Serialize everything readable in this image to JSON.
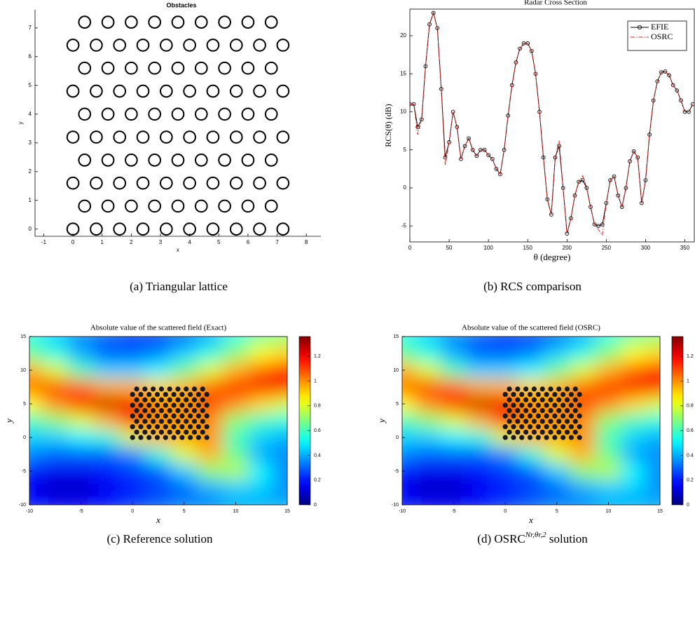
{
  "chart_data": [
    {
      "type": "scatter",
      "title": "Obstacles",
      "x_label": "x",
      "y_label": "y",
      "caption": "(a) Triangular lattice",
      "x": [
        0,
        0.8,
        1.6,
        2.4,
        3.2,
        4,
        4.8,
        5.6,
        6.4,
        7.2,
        0.4,
        1.2,
        2,
        2.8,
        3.6,
        4.4,
        5.2,
        6,
        6.8,
        0,
        0.8,
        1.6,
        2.4,
        3.2,
        4,
        4.8,
        5.6,
        6.4,
        7.2,
        0.4,
        1.2,
        2,
        2.8,
        3.6,
        4.4,
        5.2,
        6,
        6.8,
        0,
        0.8,
        1.6,
        2.4,
        3.2,
        4,
        4.8,
        5.6,
        6.4,
        7.2,
        0.4,
        1.2,
        2,
        2.8,
        3.6,
        4.4,
        5.2,
        6,
        6.8,
        0,
        0.8,
        1.6,
        2.4,
        3.2,
        4,
        4.8,
        5.6,
        6.4,
        7.2,
        0.4,
        1.2,
        2,
        2.8,
        3.6,
        4.4,
        5.2,
        6,
        6.8,
        0,
        0.8,
        1.6,
        2.4,
        3.2,
        4,
        4.8,
        5.6,
        6.4,
        7.2,
        0.4,
        1.2,
        2,
        2.8,
        3.6,
        4.4,
        5.2,
        6,
        6.8
      ],
      "y": [
        0,
        0,
        0,
        0,
        0,
        0,
        0,
        0,
        0,
        0,
        0.8,
        0.8,
        0.8,
        0.8,
        0.8,
        0.8,
        0.8,
        0.8,
        0.8,
        1.6,
        1.6,
        1.6,
        1.6,
        1.6,
        1.6,
        1.6,
        1.6,
        1.6,
        1.6,
        2.4,
        2.4,
        2.4,
        2.4,
        2.4,
        2.4,
        2.4,
        2.4,
        2.4,
        3.2,
        3.2,
        3.2,
        3.2,
        3.2,
        3.2,
        3.2,
        3.2,
        3.2,
        3.2,
        4,
        4,
        4,
        4,
        4,
        4,
        4,
        4,
        4,
        4.8,
        4.8,
        4.8,
        4.8,
        4.8,
        4.8,
        4.8,
        4.8,
        4.8,
        4.8,
        5.6,
        5.6,
        5.6,
        5.6,
        5.6,
        5.6,
        5.6,
        5.6,
        5.6,
        6.4,
        6.4,
        6.4,
        6.4,
        6.4,
        6.4,
        6.4,
        6.4,
        6.4,
        6.4,
        7.2,
        7.2,
        7.2,
        7.2,
        7.2,
        7.2,
        7.2,
        7.2,
        7.2
      ],
      "color": "#000000",
      "xlim": [
        -1.3,
        8.5
      ],
      "xticks": [
        -1,
        0,
        1,
        2,
        3,
        4,
        5,
        6,
        7,
        8
      ],
      "ylim": [
        -0.25,
        7.63
      ],
      "yticks": [
        0,
        1,
        2,
        3,
        4,
        5,
        6,
        7
      ]
    },
    {
      "type": "line",
      "title": "Radar Cross Section",
      "x_label": "θ (degree)",
      "y_label": "RCS(θ)  (dB)",
      "caption": "(b) RCS comparison",
      "x": [
        0,
        5,
        10,
        15,
        20,
        25,
        30,
        35,
        40,
        45,
        50,
        55,
        60,
        65,
        70,
        75,
        80,
        85,
        90,
        95,
        100,
        105,
        110,
        115,
        120,
        125,
        130,
        135,
        140,
        145,
        150,
        155,
        160,
        165,
        170,
        175,
        180,
        185,
        190,
        195,
        200,
        205,
        210,
        215,
        220,
        225,
        230,
        235,
        240,
        245,
        250,
        255,
        260,
        265,
        270,
        275,
        280,
        285,
        290,
        295,
        300,
        305,
        310,
        315,
        320,
        325,
        330,
        335,
        340,
        345,
        350,
        355,
        360
      ],
      "series": [
        {
          "name": "EFIE",
          "color": "#000000",
          "linestyle": "solid",
          "marker": "circle",
          "values": [
            11,
            11,
            8,
            9,
            16,
            21.5,
            23,
            21,
            13,
            4,
            6,
            10,
            8,
            3.8,
            5.5,
            6.5,
            5,
            4.2,
            5,
            5,
            4.3,
            3.8,
            2.5,
            1.8,
            5,
            9.5,
            13.5,
            16.5,
            18.3,
            19,
            19,
            18,
            15,
            10,
            4,
            -1.5,
            -3.5,
            4,
            5.5,
            0,
            -6,
            -4,
            -1,
            0.8,
            1,
            0,
            -2.5,
            -4.8,
            -5,
            -4.8,
            -2,
            1,
            1.5,
            -1,
            -2.5,
            0,
            3.5,
            4.8,
            4,
            -2,
            1,
            7,
            11.5,
            14,
            15.2,
            15.3,
            14.8,
            13.5,
            12.8,
            11.5,
            10,
            10,
            11
          ]
        },
        {
          "name": "OSRC",
          "color": "#e0201c",
          "linestyle": "dashdot",
          "marker": "none",
          "values": [
            11,
            11,
            7,
            9,
            16,
            21.5,
            23,
            21,
            13,
            3,
            6,
            10,
            8,
            3.8,
            5.5,
            6.5,
            5,
            4.2,
            5,
            5,
            4.3,
            3.8,
            2.5,
            1.8,
            5,
            9.5,
            13.5,
            16.5,
            18.3,
            19,
            19,
            18,
            15,
            10,
            4,
            -1.5,
            -3.5,
            4,
            6.2,
            0,
            -6,
            -4,
            -1,
            0.8,
            1.6,
            0,
            -2.5,
            -4.8,
            -5.5,
            -6.2,
            -2,
            1,
            1.5,
            -1,
            -2.5,
            0,
            3.5,
            4.8,
            4,
            -2,
            1,
            7,
            11.5,
            14,
            15.2,
            15.3,
            14.8,
            13.5,
            12.8,
            11.5,
            10,
            10,
            11
          ]
        }
      ],
      "legend": "northeast",
      "xlim": [
        0,
        362
      ],
      "xticks": [
        0,
        50,
        100,
        150,
        200,
        250,
        300,
        350
      ],
      "ylim": [
        -7.1,
        23.5
      ],
      "yticks": [
        -5,
        0,
        5,
        10,
        15,
        20
      ]
    },
    {
      "type": "heatmap",
      "title": "Absolute value of the scattered field (Exact)",
      "x_label": "x",
      "y_label": "y",
      "caption": "(c) Reference solution",
      "x": [
        -10,
        -7.5,
        -5,
        -2.5,
        0,
        2.5,
        5,
        7.5,
        10,
        12.5,
        15
      ],
      "y": [
        15,
        12.5,
        10,
        7.5,
        5,
        2.5,
        0,
        -2.5,
        -5,
        -7.5,
        -10
      ],
      "values": [
        [
          0.55,
          0.45,
          0.35,
          0.3,
          0.25,
          0.25,
          0.3,
          0.4,
          0.55,
          0.65,
          0.7
        ],
        [
          0.65,
          0.55,
          0.4,
          0.3,
          0.3,
          0.35,
          0.45,
          0.55,
          0.7,
          0.85,
          0.9
        ],
        [
          0.95,
          0.8,
          0.6,
          0.45,
          0.45,
          0.5,
          0.65,
          0.8,
          0.95,
          1.05,
          1.15
        ],
        [
          1.05,
          1.1,
          1.05,
          0.95,
          0.95,
          0.9,
          0.95,
          1.05,
          1.15,
          1.2,
          1.15
        ],
        [
          0.85,
          1.0,
          1.15,
          1.25,
          1.2,
          1.0,
          1.0,
          1.1,
          1.0,
          0.9,
          0.8
        ],
        [
          0.6,
          0.7,
          0.8,
          0.95,
          1.1,
          1.0,
          1.0,
          1.0,
          0.7,
          0.6,
          0.55
        ],
        [
          0.45,
          0.45,
          0.5,
          0.55,
          0.8,
          0.95,
          0.95,
          1.0,
          0.6,
          0.45,
          0.4
        ],
        [
          0.35,
          0.3,
          0.3,
          0.3,
          0.35,
          0.55,
          0.8,
          0.95,
          0.65,
          0.4,
          0.35
        ],
        [
          0.2,
          0.15,
          0.15,
          0.2,
          0.25,
          0.3,
          0.45,
          0.7,
          0.75,
          0.5,
          0.35
        ],
        [
          0.15,
          0.1,
          0.1,
          0.15,
          0.2,
          0.25,
          0.3,
          0.4,
          0.45,
          0.45,
          0.35
        ],
        [
          0.2,
          0.15,
          0.15,
          0.2,
          0.25,
          0.3,
          0.35,
          0.35,
          0.4,
          0.4,
          0.4
        ]
      ],
      "colormap": "jet",
      "clim": [
        0,
        1.36
      ],
      "colorbar_ticks": [
        0,
        0.2,
        0.4,
        0.6,
        0.8,
        1,
        1.2
      ],
      "xlim": [
        -10,
        15
      ],
      "xticks": [
        -10,
        -5,
        0,
        5,
        10,
        15
      ],
      "ylim": [
        -10,
        15
      ],
      "yticks": [
        -10,
        -5,
        0,
        5,
        10,
        15
      ]
    },
    {
      "type": "heatmap",
      "title": "Absolute value of the scattered field (OSRC)",
      "x_label": "x",
      "y_label": "y",
      "caption": "(d) OSRC",
      "caption_superscript": "Nr,θr,2",
      "caption_suffix": " solution",
      "x": [
        -10,
        -7.5,
        -5,
        -2.5,
        0,
        2.5,
        5,
        7.5,
        10,
        12.5,
        15
      ],
      "y": [
        15,
        12.5,
        10,
        7.5,
        5,
        2.5,
        0,
        -2.5,
        -5,
        -7.5,
        -10
      ],
      "values": [
        [
          0.55,
          0.45,
          0.35,
          0.3,
          0.25,
          0.25,
          0.3,
          0.4,
          0.55,
          0.65,
          0.7
        ],
        [
          0.65,
          0.55,
          0.4,
          0.3,
          0.3,
          0.35,
          0.45,
          0.55,
          0.7,
          0.85,
          0.9
        ],
        [
          0.95,
          0.8,
          0.6,
          0.45,
          0.45,
          0.5,
          0.65,
          0.8,
          0.95,
          1.05,
          1.15
        ],
        [
          1.05,
          1.1,
          1.05,
          0.95,
          0.95,
          0.9,
          0.95,
          1.05,
          1.15,
          1.2,
          1.15
        ],
        [
          0.85,
          1.0,
          1.15,
          1.25,
          1.2,
          1.0,
          1.0,
          1.1,
          1.0,
          0.9,
          0.8
        ],
        [
          0.6,
          0.7,
          0.8,
          0.95,
          1.1,
          1.0,
          1.0,
          1.0,
          0.7,
          0.6,
          0.55
        ],
        [
          0.45,
          0.45,
          0.5,
          0.55,
          0.8,
          0.95,
          0.95,
          1.0,
          0.6,
          0.45,
          0.4
        ],
        [
          0.35,
          0.3,
          0.3,
          0.3,
          0.35,
          0.55,
          0.8,
          0.95,
          0.65,
          0.4,
          0.35
        ],
        [
          0.2,
          0.15,
          0.15,
          0.2,
          0.25,
          0.3,
          0.45,
          0.7,
          0.75,
          0.5,
          0.35
        ],
        [
          0.15,
          0.1,
          0.1,
          0.15,
          0.2,
          0.25,
          0.3,
          0.4,
          0.45,
          0.45,
          0.35
        ],
        [
          0.2,
          0.15,
          0.15,
          0.2,
          0.25,
          0.3,
          0.35,
          0.35,
          0.4,
          0.4,
          0.4
        ]
      ],
      "colormap": "jet",
      "clim": [
        0,
        1.36
      ],
      "colorbar_ticks": [
        0,
        0.2,
        0.4,
        0.6,
        0.8,
        1,
        1.2
      ],
      "xlim": [
        -10,
        15
      ],
      "xticks": [
        -10,
        -5,
        0,
        5,
        10,
        15
      ],
      "ylim": [
        -10,
        15
      ],
      "yticks": [
        -10,
        -5,
        0,
        5,
        10,
        15
      ]
    }
  ]
}
